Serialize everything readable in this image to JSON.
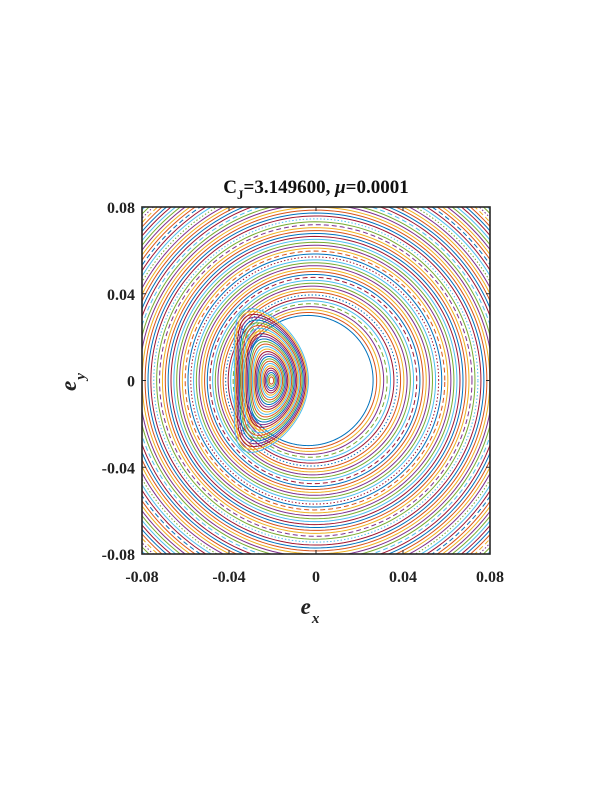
{
  "chart_data": {
    "type": "line",
    "title": {
      "var": "C",
      "var_sub": "J",
      "value_text": "=3.149600, ",
      "mu_symbol": "μ",
      "mu_text": "=0.0001"
    },
    "xlabel": {
      "main": "e",
      "sub": "x"
    },
    "ylabel": {
      "main": "e",
      "sub": "y"
    },
    "xlim": [
      -0.08,
      0.08
    ],
    "ylim": [
      -0.08,
      0.08
    ],
    "x_ticks": [
      {
        "value": -0.08,
        "label": "-0.08"
      },
      {
        "value": -0.04,
        "label": "-0.04"
      },
      {
        "value": 0,
        "label": "0"
      },
      {
        "value": 0.04,
        "label": "0.04"
      },
      {
        "value": 0.08,
        "label": "0.08"
      }
    ],
    "y_ticks": [
      {
        "value": 0.08,
        "label": "0.08"
      },
      {
        "value": 0.04,
        "label": "0.04"
      },
      {
        "value": 0,
        "label": "0"
      },
      {
        "value": -0.04,
        "label": "-0.04"
      },
      {
        "value": -0.08,
        "label": "-0.08"
      }
    ],
    "grid": false,
    "legend": "none",
    "color_cycle": [
      "#0072BD",
      "#D95319",
      "#EDB120",
      "#7E2F8E",
      "#77AC30",
      "#4DBEEE",
      "#A2142F"
    ],
    "resonance_center": [
      -0.0205,
      0
    ],
    "circulating_radius_range": [
      0.03,
      0.115
    ],
    "libration_half_width_range": [
      0.001,
      0.017
    ]
  }
}
